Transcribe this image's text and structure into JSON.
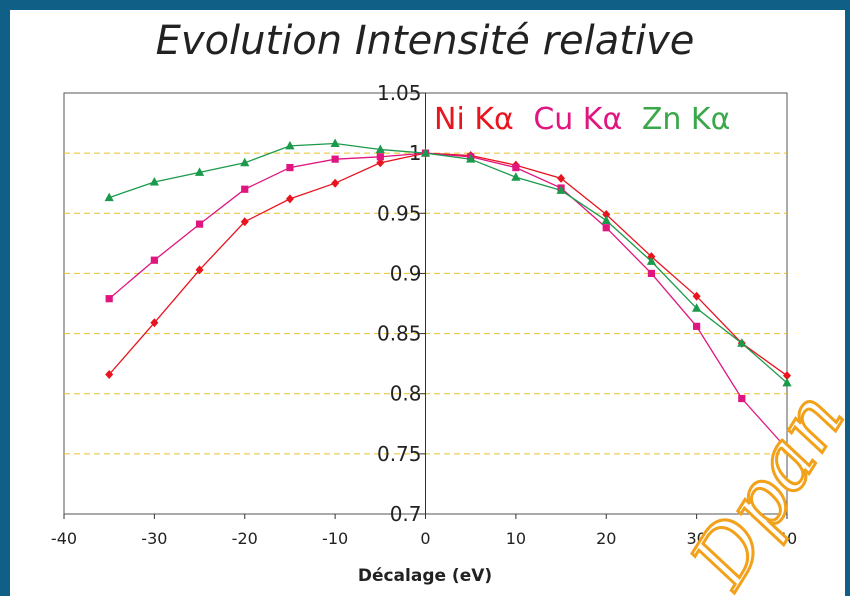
{
  "chart_data": {
    "type": "line",
    "title": "Evolution Intensité relative",
    "xlabel": "Décalage (eV)",
    "ylabel": "",
    "xlim": [
      -40,
      40
    ],
    "ylim": [
      0.7,
      1.05
    ],
    "xticks": [
      -40,
      -30,
      -20,
      -10,
      0,
      10,
      20,
      30,
      40
    ],
    "yticks": [
      0.7,
      0.75,
      0.8,
      0.85,
      0.9,
      0.95,
      1,
      1.05
    ],
    "grid": "horizontal dashed",
    "legend_position": "top-right",
    "series": [
      {
        "name": "Ni Kα",
        "color": "#e8141e",
        "marker": "diamond",
        "x": [
          -35,
          -30,
          -25,
          -20,
          -15,
          -10,
          -5,
          0,
          5,
          10,
          15,
          20,
          25,
          30,
          35,
          40
        ],
        "y": [
          0.816,
          0.859,
          0.903,
          0.943,
          0.962,
          0.975,
          0.992,
          1.0,
          0.998,
          0.99,
          0.979,
          0.949,
          0.914,
          0.881,
          0.842,
          0.815
        ]
      },
      {
        "name": "Cu Kα",
        "color": "#e0157f",
        "marker": "square",
        "x": [
          -35,
          -30,
          -25,
          -20,
          -15,
          -10,
          -5,
          0,
          5,
          10,
          15,
          20,
          25,
          30,
          35,
          40
        ],
        "y": [
          0.879,
          0.911,
          0.941,
          0.97,
          0.988,
          0.995,
          0.997,
          1.0,
          0.997,
          0.988,
          0.971,
          0.938,
          0.9,
          0.856,
          0.796,
          0.754
        ]
      },
      {
        "name": "Zn Kα",
        "color": "#1a9a4a",
        "marker": "triangle",
        "x": [
          -35,
          -30,
          -25,
          -20,
          -15,
          -10,
          -5,
          0,
          5,
          10,
          15,
          20,
          25,
          30,
          35,
          40
        ],
        "y": [
          0.963,
          0.976,
          0.984,
          0.992,
          1.006,
          1.008,
          1.003,
          1.0,
          0.995,
          0.98,
          0.969,
          0.944,
          0.91,
          0.871,
          0.842,
          0.809
        ]
      }
    ]
  },
  "legend_colors": [
    "#e8141e",
    "#e0157f",
    "#3aa84a"
  ],
  "watermark": "Dpan"
}
